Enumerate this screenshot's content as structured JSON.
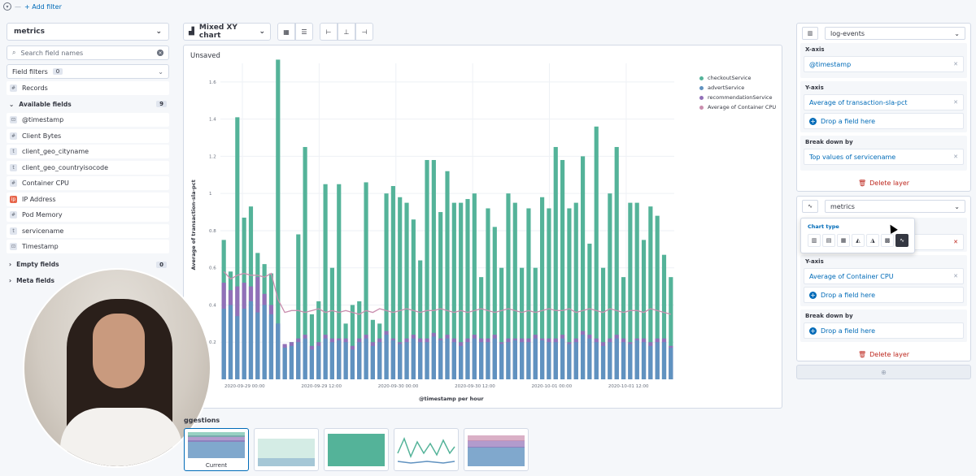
{
  "topbar": {
    "add_filter": "+ Add filter",
    "separator": "—"
  },
  "index_selector": {
    "value": "metrics"
  },
  "field_search": {
    "placeholder": "Search field names"
  },
  "field_filters": {
    "label": "Field filters",
    "count": "0"
  },
  "records": {
    "label": "Records",
    "type": "#"
  },
  "available_fields": {
    "label": "Available fields",
    "count": "9",
    "items": [
      {
        "type": "⊡",
        "name": "@timestamp"
      },
      {
        "type": "#",
        "name": "Client Bytes"
      },
      {
        "type": "t",
        "name": "client_geo_cityname"
      },
      {
        "type": "t",
        "name": "client_geo_countryisocode"
      },
      {
        "type": "#",
        "name": "Container CPU"
      },
      {
        "type": "ip",
        "name": "IP Address"
      },
      {
        "type": "#",
        "name": "Pod Memory"
      },
      {
        "type": "t",
        "name": "servicename"
      },
      {
        "type": "⊡",
        "name": "Timestamp"
      }
    ]
  },
  "empty_fields": {
    "label": "Empty fields",
    "count": "0"
  },
  "meta_fields": {
    "label": "Meta fields"
  },
  "toolbar": {
    "chart_switch": "Mixed XY chart"
  },
  "panel": {
    "status": "Unsaved"
  },
  "chart_data": {
    "type": "bar",
    "ylabel": "Average of transaction-sla-pct",
    "xlabel": "@timestamp per hour",
    "ylim": [
      0,
      1.7
    ],
    "yticks": [
      "0.2",
      "0.4",
      "0.6",
      "0.8",
      "1",
      "1.2",
      "1.4",
      "1.6"
    ],
    "xticks": [
      "2020-09-29 00:00",
      "2020-09-29 12:00",
      "2020-09-30 00:00",
      "2020-09-30 12:00",
      "2020-10-01 00:00",
      "2020-10-01 12:00"
    ],
    "series": [
      {
        "name": "checkoutService",
        "color": "#54b399",
        "values": [
          0.75,
          0.58,
          1.41,
          0.87,
          0.93,
          0.68,
          0.62,
          0.57,
          1.72,
          0.18,
          0.2,
          0.78,
          1.25,
          0.35,
          0.42,
          1.05,
          0.6,
          1.05,
          0.3,
          0.4,
          0.42,
          1.06,
          0.32,
          0.3,
          1.0,
          1.04,
          0.98,
          0.95,
          0.86,
          0.64,
          1.18,
          1.18,
          0.9,
          1.12,
          0.95,
          0.95,
          0.97,
          1.0,
          0.55,
          0.92,
          0.82,
          0.6,
          1.0,
          0.95,
          0.6,
          0.92,
          0.6,
          0.98,
          0.92,
          1.25,
          1.18,
          0.92,
          0.95,
          1.2,
          0.73,
          1.36,
          0.6,
          1.0,
          1.25,
          0.55,
          0.95,
          0.95,
          0.75,
          0.93,
          0.88,
          0.67,
          0.55
        ]
      },
      {
        "name": "advertService",
        "color": "#6092c0",
        "values": [
          0.38,
          0.4,
          0.34,
          0.38,
          0.42,
          0.36,
          0.4,
          0.35,
          0.3,
          0.17,
          0.18,
          0.2,
          0.22,
          0.16,
          0.18,
          0.22,
          0.2,
          0.21,
          0.2,
          0.16,
          0.2,
          0.22,
          0.18,
          0.2,
          0.24,
          0.21,
          0.19,
          0.2,
          0.22,
          0.2,
          0.2,
          0.23,
          0.21,
          0.22,
          0.2,
          0.18,
          0.2,
          0.22,
          0.2,
          0.2,
          0.22,
          0.19,
          0.2,
          0.21,
          0.2,
          0.2,
          0.22,
          0.21,
          0.2,
          0.2,
          0.22,
          0.19,
          0.2,
          0.24,
          0.22,
          0.2,
          0.18,
          0.2,
          0.22,
          0.2,
          0.19,
          0.21,
          0.2,
          0.18,
          0.2,
          0.2,
          0.17
        ]
      },
      {
        "name": "recommendationService",
        "color": "#9170b8",
        "values": [
          0.52,
          0.48,
          0.5,
          0.52,
          0.5,
          0.55,
          0.46,
          0.4,
          0.3,
          0.19,
          0.2,
          0.22,
          0.24,
          0.18,
          0.2,
          0.24,
          0.22,
          0.22,
          0.22,
          0.18,
          0.22,
          0.24,
          0.2,
          0.22,
          0.26,
          0.22,
          0.2,
          0.22,
          0.24,
          0.22,
          0.22,
          0.25,
          0.22,
          0.24,
          0.22,
          0.2,
          0.22,
          0.24,
          0.22,
          0.22,
          0.24,
          0.2,
          0.22,
          0.22,
          0.22,
          0.22,
          0.24,
          0.22,
          0.22,
          0.22,
          0.24,
          0.2,
          0.22,
          0.26,
          0.24,
          0.22,
          0.2,
          0.22,
          0.24,
          0.22,
          0.2,
          0.22,
          0.22,
          0.2,
          0.22,
          0.22,
          0.18
        ]
      },
      {
        "name": "Average of Container CPU",
        "color": "#ca8eae",
        "type": "line",
        "values": [
          0.58,
          0.54,
          0.56,
          0.57,
          0.56,
          0.56,
          0.55,
          0.57,
          0.43,
          0.36,
          0.37,
          0.37,
          0.36,
          0.37,
          0.38,
          0.36,
          0.37,
          0.36,
          0.37,
          0.36,
          0.35,
          0.37,
          0.36,
          0.38,
          0.37,
          0.36,
          0.37,
          0.38,
          0.37,
          0.36,
          0.37,
          0.37,
          0.38,
          0.37,
          0.36,
          0.37,
          0.36,
          0.37,
          0.38,
          0.37,
          0.36,
          0.37,
          0.38,
          0.37,
          0.36,
          0.37,
          0.36,
          0.37,
          0.38,
          0.37,
          0.37,
          0.38,
          0.36,
          0.37,
          0.38,
          0.37,
          0.36,
          0.38,
          0.37,
          0.36,
          0.37,
          0.37,
          0.36,
          0.38,
          0.37,
          0.36,
          0.35
        ]
      }
    ]
  },
  "suggestions": {
    "title": "ggestions",
    "current_label": "Current"
  },
  "layer1": {
    "index": "log-events",
    "xaxis_title": "X-axis",
    "xaxis_value": "@timestamp",
    "yaxis_title": "Y-axis",
    "yaxis_value": "Average of transaction-sla-pct",
    "drop_label": "Drop a field here",
    "breakdown_title": "Break down by",
    "breakdown_value": "Top values of servicename",
    "delete_label": "Delete layer"
  },
  "layer2": {
    "index": "metrics",
    "yaxis_title": "Y-axis",
    "yaxis_value": "Average of Container CPU",
    "drop_label": "Drop a field here",
    "breakdown_title": "Break down by",
    "breakdown_drop": "Drop a field here",
    "delete_label": "Delete layer"
  },
  "chart_type_popover": {
    "title": "Chart type"
  },
  "colors": {
    "accent": "#006bb8",
    "danger": "#bd271e"
  }
}
